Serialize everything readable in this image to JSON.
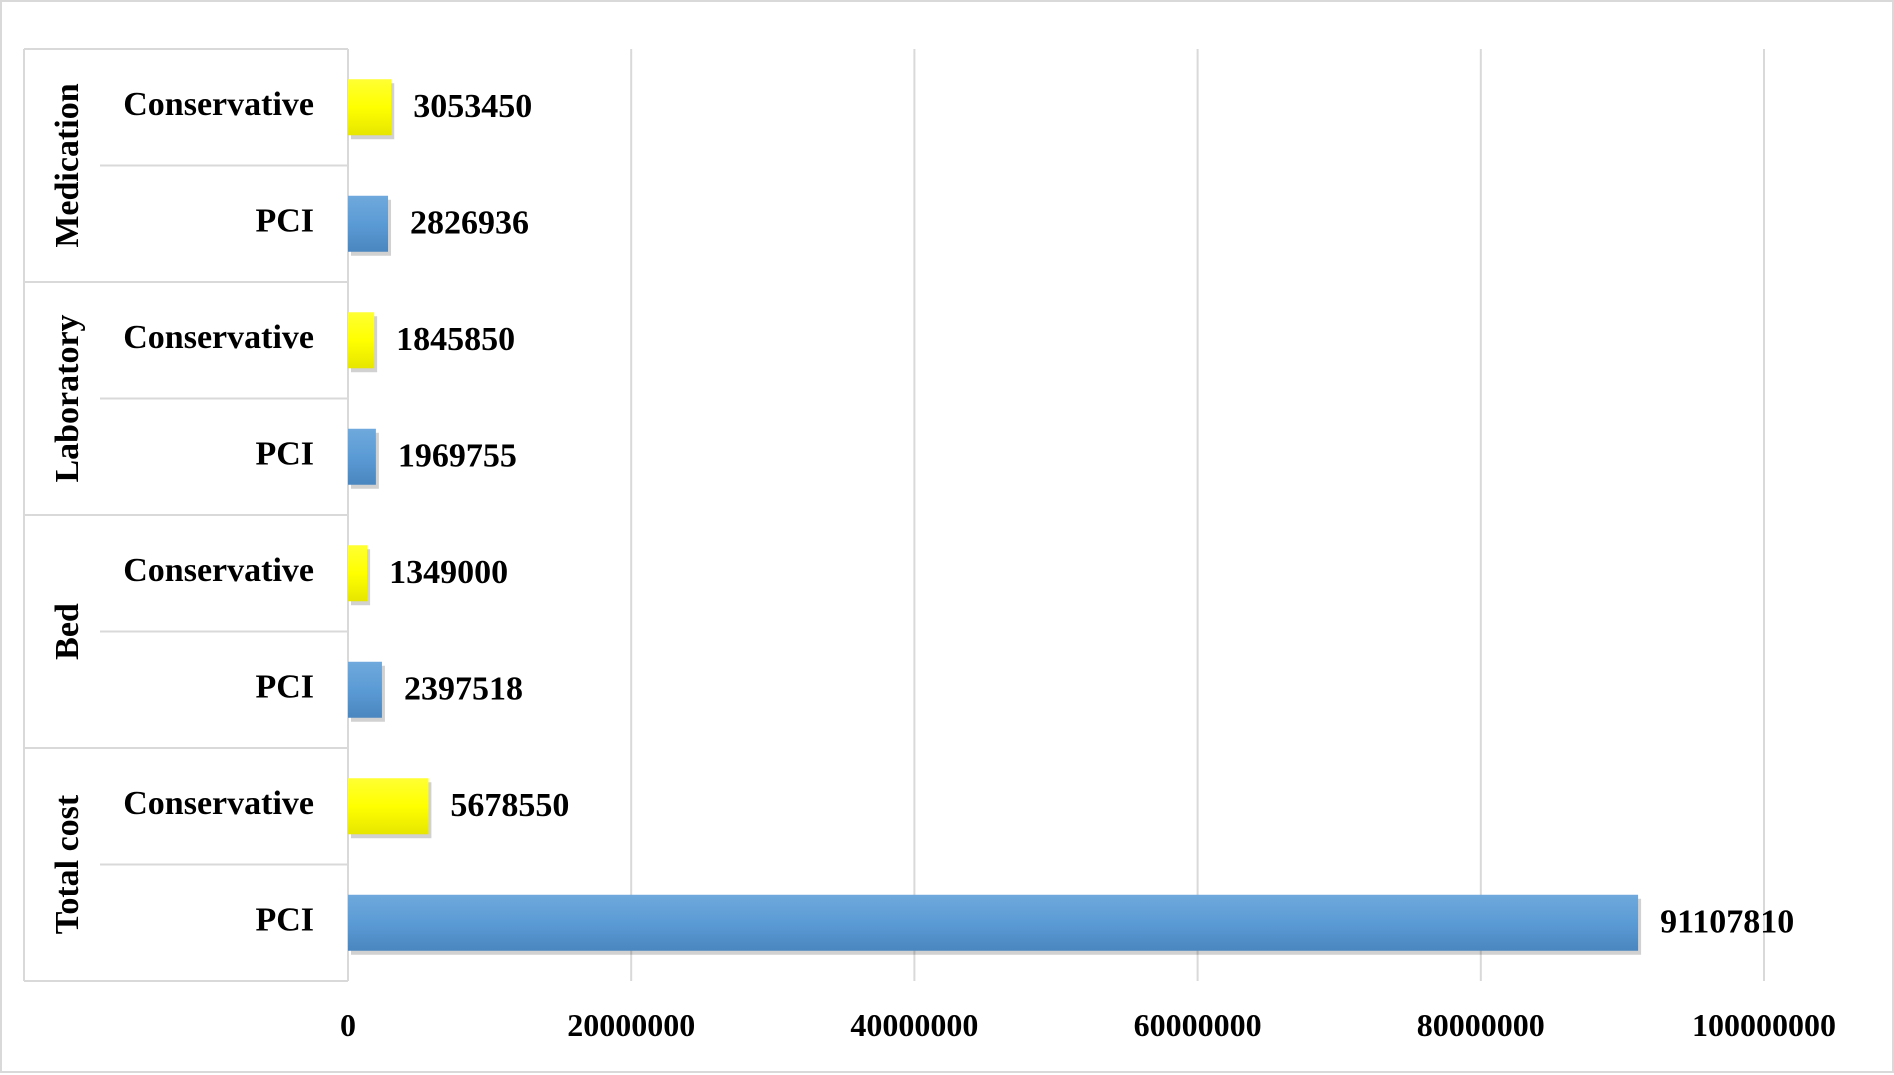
{
  "chart_data": {
    "type": "bar",
    "orientation": "horizontal",
    "title": "",
    "xlabel": "",
    "ylabel": "",
    "xlim": [
      0,
      100000000
    ],
    "x_ticks": [
      "0",
      "20000000",
      "40000000",
      "60000000",
      "80000000",
      "100000000"
    ],
    "x_tick_values": [
      0,
      20000000,
      40000000,
      60000000,
      80000000,
      100000000
    ],
    "grid": "vertical",
    "legend": "none",
    "colors": {
      "Conservative": "#ffff00",
      "PCI": "#5b9bd5"
    },
    "groups": [
      {
        "name": "Medication",
        "bars": [
          {
            "label": "Conservative",
            "value": 3053450,
            "value_label": "3053450"
          },
          {
            "label": "PCI",
            "value": 2826936,
            "value_label": "2826936"
          }
        ]
      },
      {
        "name": "Laboratory",
        "bars": [
          {
            "label": "Conservative",
            "value": 1845850,
            "value_label": "1845850"
          },
          {
            "label": "PCI",
            "value": 1969755,
            "value_label": "1969755"
          }
        ]
      },
      {
        "name": "Bed",
        "bars": [
          {
            "label": "Conservative",
            "value": 1349000,
            "value_label": "1349000"
          },
          {
            "label": "PCI",
            "value": 2397518,
            "value_label": "2397518"
          }
        ]
      },
      {
        "name": "Total cost",
        "bars": [
          {
            "label": "Conservative",
            "value": 5678550,
            "value_label": "5678550"
          },
          {
            "label": "PCI",
            "value": 91107810,
            "value_label": "91107810"
          }
        ]
      }
    ]
  }
}
